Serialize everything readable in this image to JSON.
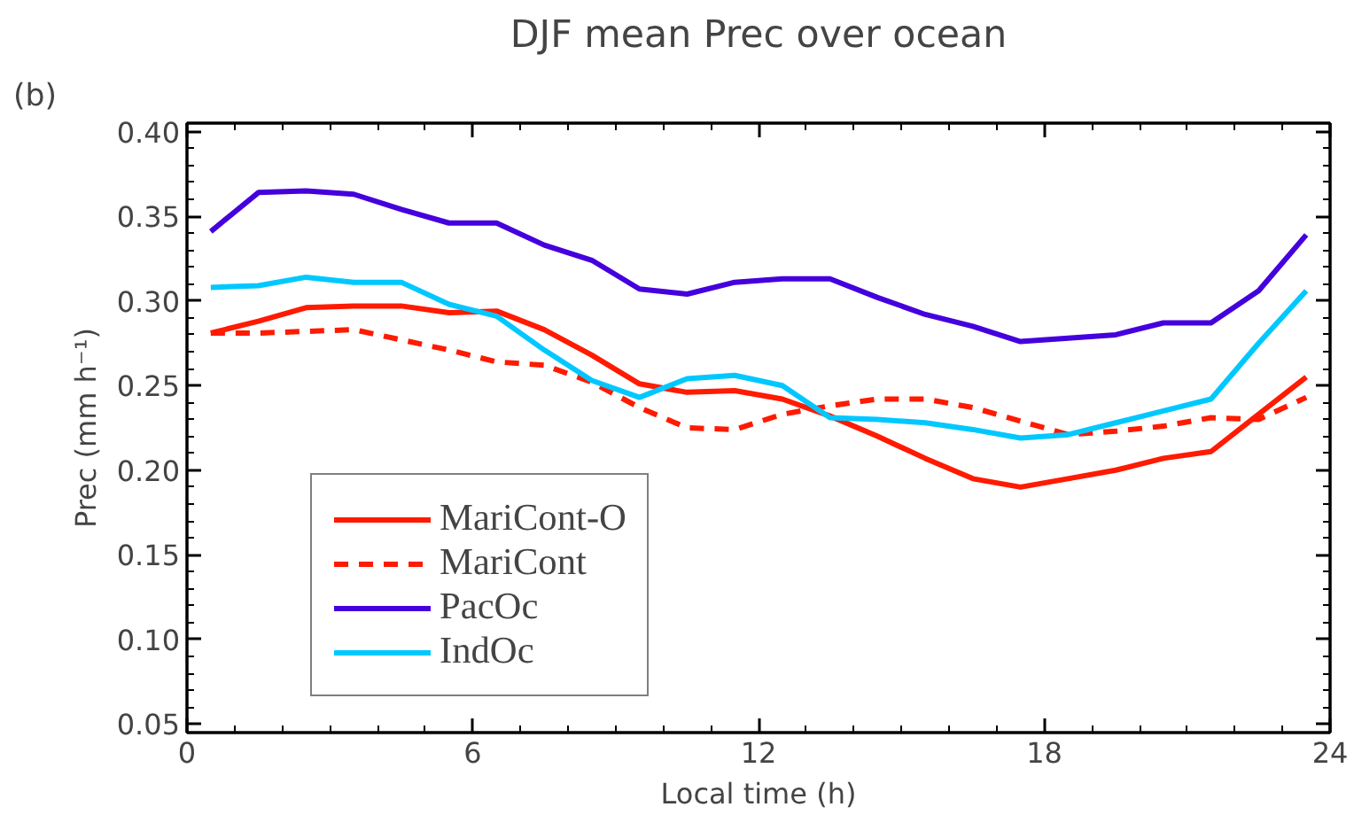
{
  "chart_data": {
    "type": "line",
    "title": "DJF mean Prec over ocean",
    "xlabel": "Local time (h)",
    "ylabel": "Prec (mm h⁻¹)",
    "annotations": [
      "(b)"
    ],
    "x": [
      0.5,
      1.5,
      2.5,
      3.5,
      4.5,
      5.5,
      6.5,
      7.5,
      8.5,
      9.5,
      10.5,
      11.5,
      12.5,
      13.5,
      14.5,
      15.5,
      16.5,
      17.5,
      18.5,
      19.5,
      20.5,
      21.5,
      22.5,
      23.5
    ],
    "series": [
      {
        "name": "MariCont-O",
        "color": "#ff1a00",
        "line_style": "solid",
        "values": [
          0.281,
          0.288,
          0.296,
          0.297,
          0.297,
          0.293,
          0.294,
          0.283,
          0.268,
          0.251,
          0.246,
          0.247,
          0.242,
          0.232,
          0.22,
          0.207,
          0.195,
          0.19,
          0.195,
          0.2,
          0.207,
          0.211,
          0.233,
          0.255
        ]
      },
      {
        "name": "MariCont",
        "color": "#ff1a00",
        "line_style": "dashed",
        "values": [
          0.281,
          0.281,
          0.282,
          0.283,
          0.277,
          0.271,
          0.264,
          0.262,
          0.252,
          0.237,
          0.225,
          0.224,
          0.233,
          0.238,
          0.242,
          0.242,
          0.237,
          0.229,
          0.221,
          0.223,
          0.226,
          0.231,
          0.23,
          0.243
        ]
      },
      {
        "name": "PacOc",
        "color": "#4400dd",
        "line_style": "solid",
        "values": [
          0.341,
          0.364,
          0.365,
          0.363,
          0.354,
          0.346,
          0.346,
          0.333,
          0.324,
          0.307,
          0.304,
          0.311,
          0.313,
          0.313,
          0.302,
          0.292,
          0.285,
          0.276,
          0.278,
          0.28,
          0.287,
          0.287,
          0.306,
          0.339
        ]
      },
      {
        "name": "IndOc",
        "color": "#00c8ff",
        "line_style": "solid",
        "values": [
          0.308,
          0.309,
          0.314,
          0.311,
          0.311,
          0.298,
          0.291,
          0.271,
          0.253,
          0.243,
          0.254,
          0.256,
          0.25,
          0.231,
          0.23,
          0.228,
          0.224,
          0.219,
          0.221,
          0.228,
          0.235,
          0.242,
          0.275,
          0.306
        ]
      }
    ],
    "xlim": [
      0,
      24
    ],
    "xticks": [
      0,
      6,
      12,
      18,
      24
    ],
    "ylim": [
      0.045,
      0.405
    ],
    "yticks": [
      {
        "value": 0.05,
        "label": "0.05"
      },
      {
        "value": 0.1,
        "label": "0.10"
      },
      {
        "value": 0.15,
        "label": "0.15"
      },
      {
        "value": 0.2,
        "label": "0.20"
      },
      {
        "value": 0.25,
        "label": "0.25"
      },
      {
        "value": 0.3,
        "label": "0.30"
      },
      {
        "value": 0.35,
        "label": "0.35"
      },
      {
        "value": 0.4,
        "label": "0.40"
      }
    ],
    "grid": false,
    "legend": "bottom left",
    "marker": "none"
  }
}
